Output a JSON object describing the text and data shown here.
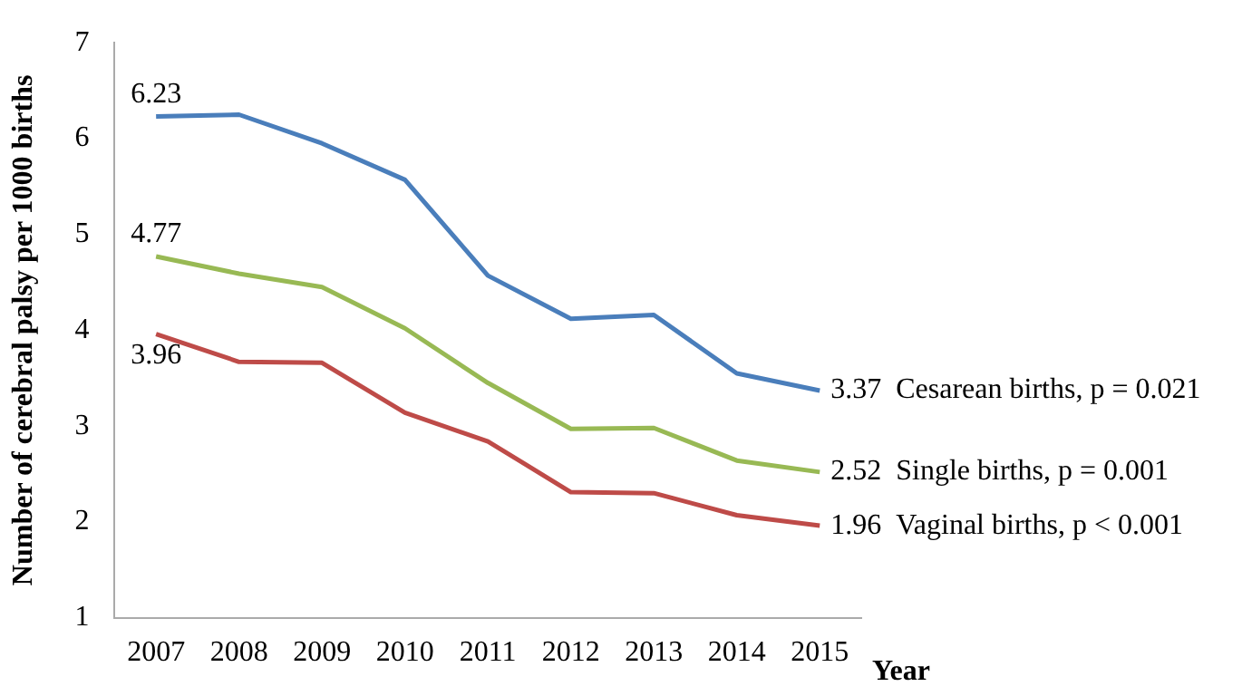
{
  "chart_data": {
    "type": "line",
    "xlabel": "Year",
    "ylabel": "Number of cerebral palsy per 1000 births",
    "categories": [
      "2007",
      "2008",
      "2009",
      "2010",
      "2011",
      "2012",
      "2013",
      "2014",
      "2015"
    ],
    "series": [
      {
        "name": "Cesarean births, p = 0.021",
        "color": "#4a7ebb",
        "values": [
          6.23,
          6.25,
          5.95,
          5.57,
          4.57,
          4.12,
          4.16,
          3.55,
          3.37
        ],
        "value_labels": [
          "6.23",
          null,
          null,
          null,
          null,
          null,
          null,
          null,
          "3.37"
        ]
      },
      {
        "name": "Single births, p = 0.001",
        "color": "#98b954",
        "values": [
          4.77,
          4.59,
          4.45,
          4.02,
          3.45,
          2.97,
          2.98,
          2.64,
          2.52
        ],
        "value_labels": [
          "4.77",
          null,
          null,
          null,
          null,
          null,
          null,
          null,
          "2.52"
        ]
      },
      {
        "name": "Vaginal births, p < 0.001",
        "color": "#be4b48",
        "values": [
          3.96,
          3.67,
          3.66,
          3.14,
          2.84,
          2.31,
          2.3,
          2.07,
          1.96
        ],
        "value_labels": [
          "3.96",
          null,
          null,
          null,
          null,
          null,
          null,
          null,
          "1.96"
        ]
      }
    ],
    "ylim": [
      1,
      7
    ],
    "yticks": [
      1,
      2,
      3,
      4,
      5,
      6,
      7
    ],
    "grid": false,
    "legend": false,
    "marker": "none",
    "line_style": "solid"
  }
}
